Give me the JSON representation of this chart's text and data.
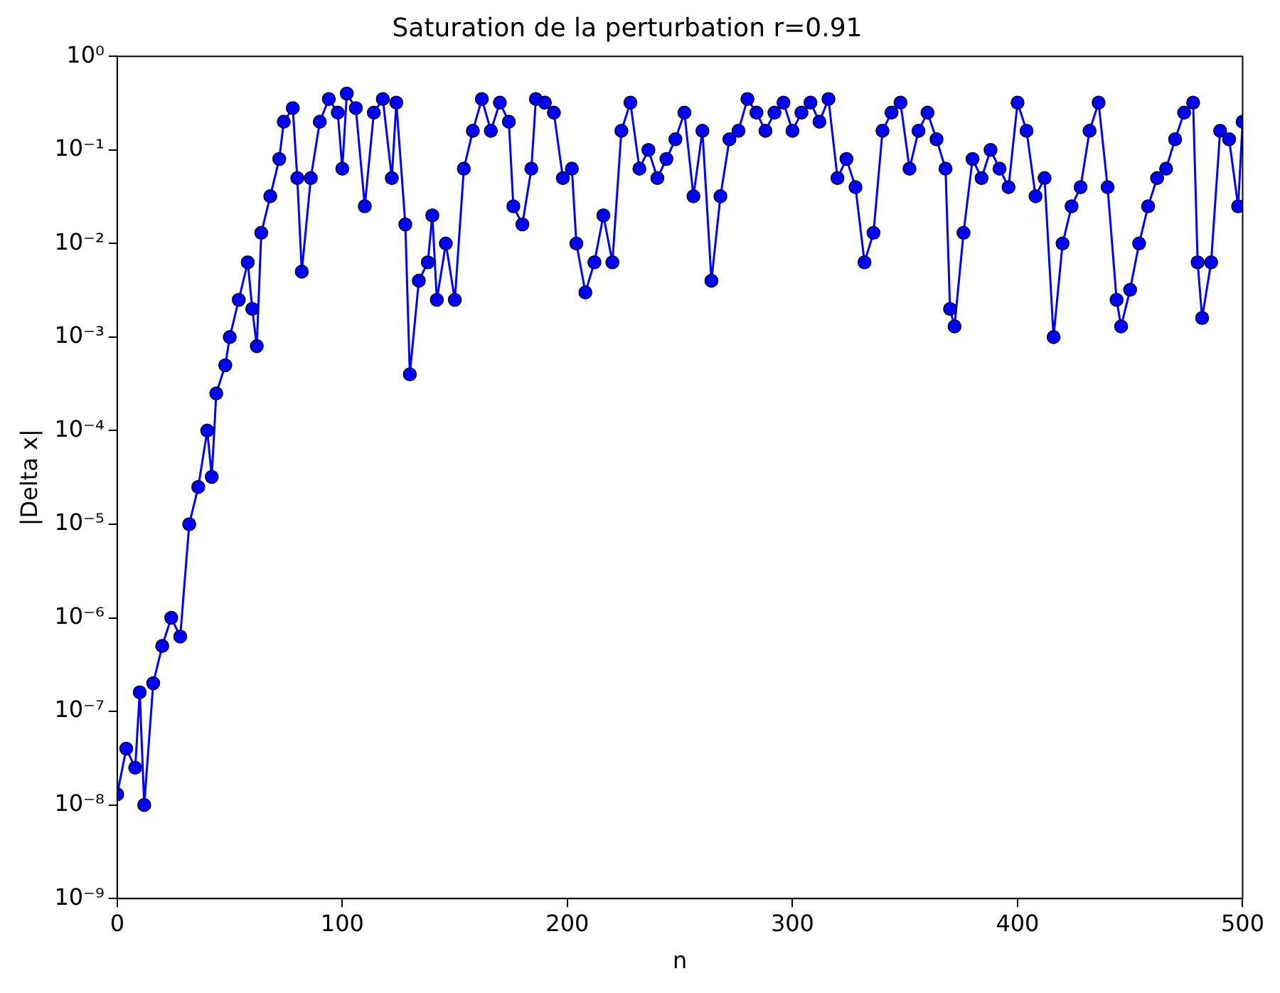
{
  "chart_data": {
    "type": "line",
    "title": "Saturation de la perturbation r=0.91",
    "xlabel": "n",
    "ylabel": "|Delta x|",
    "log": "y",
    "marker": "circle",
    "line_style": "solid",
    "grid": false,
    "legend": false,
    "xlim": [
      0,
      500
    ],
    "xticks": [
      0,
      100,
      200,
      300,
      400,
      500
    ],
    "ylim": [
      1e-09,
      1
    ],
    "yticks": [
      {
        "value": 1e-09,
        "label": "10⁻⁹"
      },
      {
        "value": 1e-08,
        "label": "10⁻⁸"
      },
      {
        "value": 1e-07,
        "label": "10⁻⁷"
      },
      {
        "value": 1e-06,
        "label": "10⁻⁶"
      },
      {
        "value": 1e-05,
        "label": "10⁻⁵"
      },
      {
        "value": 0.0001,
        "label": "10⁻⁴"
      },
      {
        "value": 0.001,
        "label": "10⁻³"
      },
      {
        "value": 0.01,
        "label": "10⁻²"
      },
      {
        "value": 0.1,
        "label": "10⁻¹"
      },
      {
        "value": 1,
        "label": "10⁰"
      }
    ],
    "series": [
      {
        "color": "#0000ff",
        "x": [
          0,
          4,
          8,
          10,
          12,
          16,
          20,
          24,
          28,
          32,
          36,
          40,
          42,
          44,
          48,
          50,
          54,
          58,
          60,
          62,
          64,
          68,
          72,
          74,
          78,
          80,
          82,
          86,
          90,
          94,
          98,
          100,
          102,
          106,
          110,
          114,
          118,
          122,
          124,
          128,
          130,
          134,
          138,
          140,
          142,
          146,
          150,
          154,
          158,
          162,
          166,
          170,
          174,
          176,
          180,
          184,
          186,
          190,
          194,
          198,
          202,
          204,
          208,
          212,
          216,
          220,
          224,
          228,
          232,
          236,
          240,
          244,
          248,
          252,
          256,
          260,
          264,
          268,
          272,
          276,
          280,
          284,
          288,
          292,
          296,
          300,
          304,
          308,
          312,
          316,
          320,
          324,
          328,
          332,
          336,
          340,
          344,
          348,
          352,
          356,
          360,
          364,
          368,
          370,
          372,
          376,
          380,
          384,
          388,
          392,
          396,
          400,
          404,
          408,
          412,
          416,
          420,
          424,
          428,
          432,
          436,
          440,
          444,
          446,
          450,
          454,
          458,
          462,
          466,
          470,
          474,
          478,
          480,
          482,
          486,
          490,
          494,
          498,
          500
        ],
        "values": [
          1.3e-08,
          4e-08,
          2.5e-08,
          1.6e-07,
          1e-08,
          2e-07,
          5e-07,
          1e-06,
          6.3e-07,
          1e-05,
          2.5e-05,
          0.0001,
          3.2e-05,
          0.00025,
          0.0005,
          0.001,
          0.0025,
          0.0063,
          0.002,
          0.0008,
          0.013,
          0.032,
          0.08,
          0.2,
          0.28,
          0.05,
          0.005,
          0.05,
          0.2,
          0.35,
          0.25,
          0.063,
          0.4,
          0.28,
          0.025,
          0.25,
          0.35,
          0.05,
          0.32,
          0.016,
          0.0004,
          0.004,
          0.0063,
          0.02,
          0.0025,
          0.01,
          0.0025,
          0.063,
          0.16,
          0.35,
          0.16,
          0.32,
          0.2,
          0.025,
          0.016,
          0.063,
          0.35,
          0.32,
          0.25,
          0.05,
          0.063,
          0.01,
          0.003,
          0.0063,
          0.02,
          0.0063,
          0.16,
          0.32,
          0.063,
          0.1,
          0.05,
          0.08,
          0.13,
          0.25,
          0.032,
          0.16,
          0.004,
          0.032,
          0.13,
          0.16,
          0.35,
          0.25,
          0.16,
          0.25,
          0.32,
          0.16,
          0.25,
          0.32,
          0.2,
          0.35,
          0.05,
          0.08,
          0.04,
          0.0063,
          0.013,
          0.16,
          0.25,
          0.32,
          0.063,
          0.16,
          0.25,
          0.13,
          0.063,
          0.002,
          0.0013,
          0.013,
          0.08,
          0.05,
          0.1,
          0.063,
          0.04,
          0.32,
          0.16,
          0.032,
          0.05,
          0.001,
          0.01,
          0.025,
          0.04,
          0.16,
          0.32,
          0.04,
          0.0025,
          0.0013,
          0.0032,
          0.01,
          0.025,
          0.05,
          0.063,
          0.13,
          0.25,
          0.32,
          0.0063,
          0.0016,
          0.0063,
          0.16,
          0.13,
          0.025,
          0.2
        ]
      }
    ]
  }
}
